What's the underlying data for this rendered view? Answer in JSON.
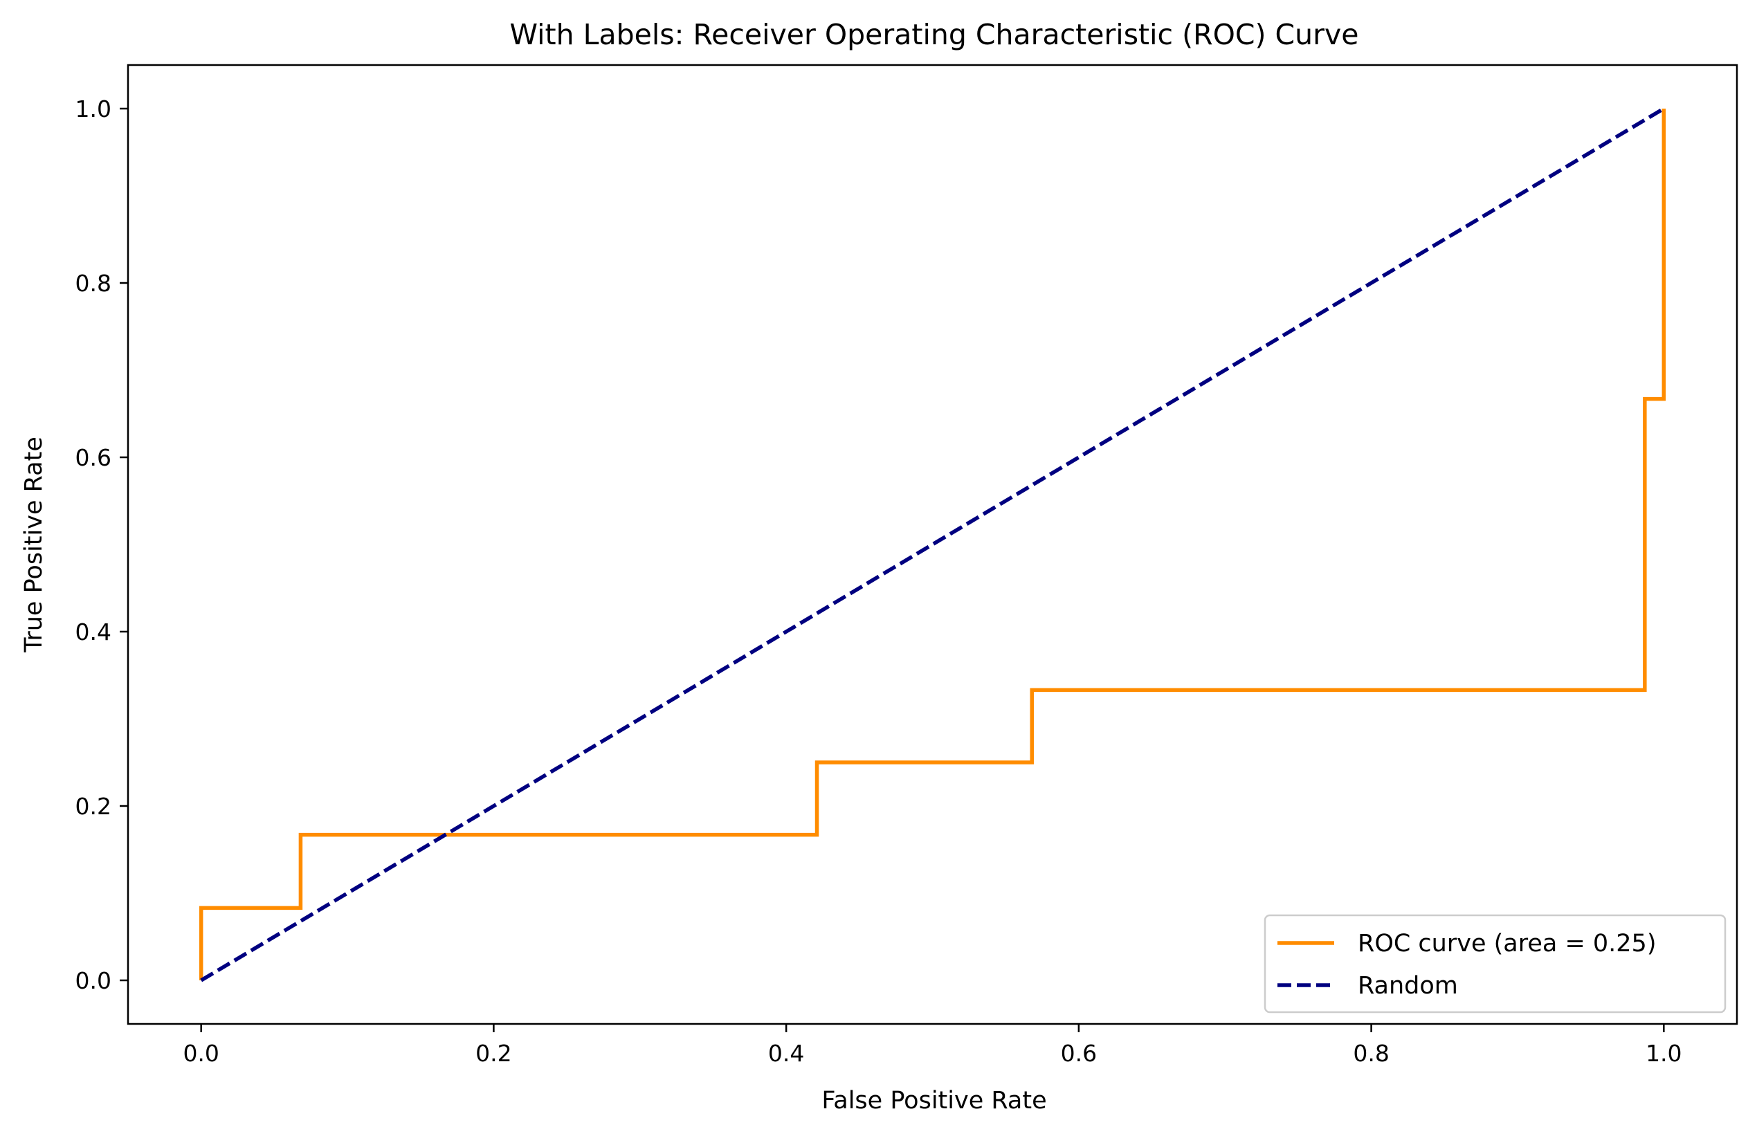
{
  "chart_data": {
    "type": "line",
    "title": "With Labels: Receiver Operating Characteristic (ROC) Curve",
    "xlabel": "False Positive Rate",
    "ylabel": "True Positive Rate",
    "xlim": [
      -0.05,
      1.05
    ],
    "ylim": [
      -0.05,
      1.05
    ],
    "x_ticks": [
      0.0,
      0.2,
      0.4,
      0.6,
      0.8,
      1.0
    ],
    "x_tick_labels": [
      "0.0",
      "0.2",
      "0.4",
      "0.6",
      "0.8",
      "1.0"
    ],
    "y_ticks": [
      0.0,
      0.2,
      0.4,
      0.6,
      0.8,
      1.0
    ],
    "y_tick_labels": [
      "0.0",
      "0.2",
      "0.4",
      "0.6",
      "0.8",
      "1.0"
    ],
    "grid": false,
    "legend_position": "lower-right",
    "series": [
      {
        "name": "ROC curve (area = 0.25)",
        "color": "#ff8c00",
        "style": "solid",
        "x": [
          0.0,
          0.0,
          0.068,
          0.068,
          0.421,
          0.421,
          0.568,
          0.568,
          0.987,
          0.987,
          1.0,
          1.0
        ],
        "y": [
          0.0,
          0.083,
          0.083,
          0.167,
          0.167,
          0.25,
          0.25,
          0.333,
          0.333,
          0.667,
          0.667,
          1.0
        ]
      },
      {
        "name": "Random",
        "color": "#000080",
        "style": "dashed",
        "x": [
          0.0,
          1.0
        ],
        "y": [
          0.0,
          1.0
        ]
      }
    ]
  }
}
